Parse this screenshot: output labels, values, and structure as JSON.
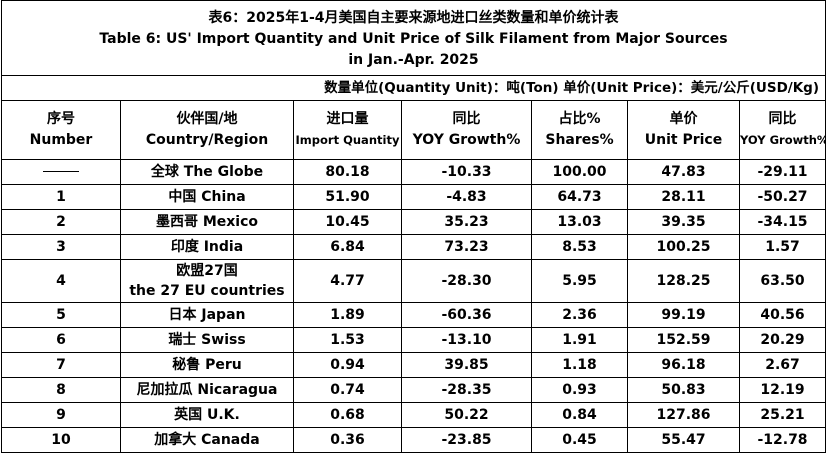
{
  "title": {
    "cn": "表6：2025年1-4月美国自主要来源地进口丝类数量和单价统计表",
    "en_line1": "Table 6: US' Import Quantity and Unit Price of Silk Filament from Major Sources",
    "en_line2": "in Jan.-Apr. 2025"
  },
  "unit_note": "数量单位(Quantity Unit)：吨(Ton)   单价(Unit Price)：美元/公斤(USD/Kg)",
  "headers": {
    "no_cn": "序号",
    "no_en": "Number",
    "country_cn": "伙伴国/地",
    "country_en": "Country/Region",
    "qty_cn": "进口量",
    "qty_en": "Import Quantity",
    "yoy1_cn": "同比",
    "yoy1_en": "YOY Growth%",
    "share_cn": "占比%",
    "share_en": "Shares%",
    "price_cn": "单价",
    "price_en": "Unit Price",
    "yoy2_cn": "同比",
    "yoy2_en": "YOY Growth%"
  },
  "rows": [
    {
      "no": "",
      "country": "全球 The Globe",
      "country2": "",
      "qty": "80.18",
      "yoy1": "-10.33",
      "share": "100.00",
      "price": "47.83",
      "yoy2": "-29.11"
    },
    {
      "no": "1",
      "country": "中国 China",
      "country2": "",
      "qty": "51.90",
      "yoy1": "-4.83",
      "share": "64.73",
      "price": "28.11",
      "yoy2": "-50.27"
    },
    {
      "no": "2",
      "country": "墨西哥 Mexico",
      "country2": "",
      "qty": "10.45",
      "yoy1": "35.23",
      "share": "13.03",
      "price": "39.35",
      "yoy2": "-34.15"
    },
    {
      "no": "3",
      "country": "印度 India",
      "country2": "",
      "qty": "6.84",
      "yoy1": "73.23",
      "share": "8.53",
      "price": "100.25",
      "yoy2": "1.57"
    },
    {
      "no": "4",
      "country": "欧盟27国",
      "country2": "the 27 EU countries",
      "qty": "4.77",
      "yoy1": "-28.30",
      "share": "5.95",
      "price": "128.25",
      "yoy2": "63.50"
    },
    {
      "no": "5",
      "country": "日本 Japan",
      "country2": "",
      "qty": "1.89",
      "yoy1": "-60.36",
      "share": "2.36",
      "price": "99.19",
      "yoy2": "40.56"
    },
    {
      "no": "6",
      "country": "瑞士 Swiss",
      "country2": "",
      "qty": "1.53",
      "yoy1": "-13.10",
      "share": "1.91",
      "price": "152.59",
      "yoy2": "20.29"
    },
    {
      "no": "7",
      "country": "秘鲁 Peru",
      "country2": "",
      "qty": "0.94",
      "yoy1": "39.85",
      "share": "1.18",
      "price": "96.18",
      "yoy2": "2.67"
    },
    {
      "no": "8",
      "country": "尼加拉瓜 Nicaragua",
      "country2": "",
      "qty": "0.74",
      "yoy1": "-28.35",
      "share": "0.93",
      "price": "50.83",
      "yoy2": "12.19"
    },
    {
      "no": "9",
      "country": "英国 U.K.",
      "country2": "",
      "qty": "0.68",
      "yoy1": "50.22",
      "share": "0.84",
      "price": "127.86",
      "yoy2": "25.21"
    },
    {
      "no": "10",
      "country": "加拿大 Canada",
      "country2": "",
      "qty": "0.36",
      "yoy1": "-23.85",
      "share": "0.45",
      "price": "55.47",
      "yoy2": "-12.78"
    }
  ]
}
